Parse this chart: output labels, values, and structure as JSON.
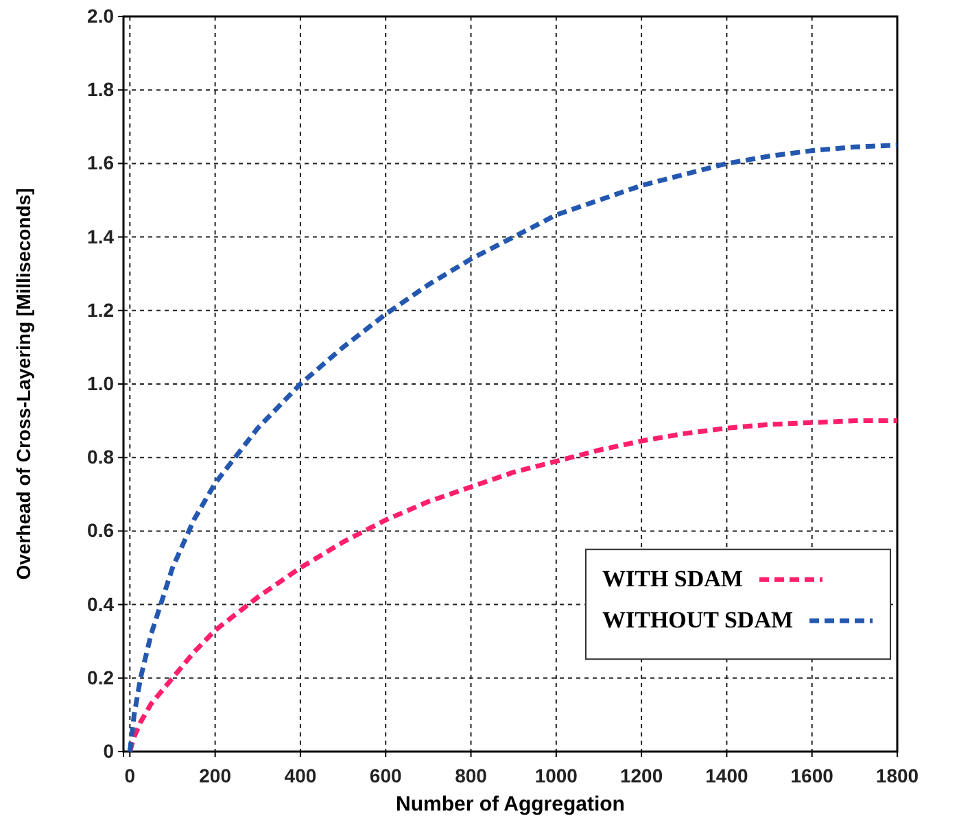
{
  "chart_data": {
    "type": "line",
    "xlabel": "Number of Aggregation",
    "ylabel": "Overhead of Cross-Layering [Milliseconds]",
    "x": [
      0,
      10,
      25,
      50,
      100,
      150,
      200,
      300,
      400,
      500,
      600,
      700,
      800,
      900,
      1000,
      1100,
      1200,
      1300,
      1400,
      1500,
      1600,
      1700,
      1800
    ],
    "series": [
      {
        "name": "WITH SDAM",
        "color": "#ff1f6b",
        "values": [
          0,
          0.04,
          0.08,
          0.13,
          0.2,
          0.27,
          0.33,
          0.42,
          0.5,
          0.57,
          0.63,
          0.68,
          0.72,
          0.76,
          0.79,
          0.82,
          0.845,
          0.865,
          0.88,
          0.89,
          0.895,
          0.9,
          0.9
        ]
      },
      {
        "name": "WITHOUT SDAM",
        "color": "#2458b0",
        "values": [
          0,
          0.1,
          0.2,
          0.32,
          0.5,
          0.63,
          0.73,
          0.88,
          1.0,
          1.1,
          1.19,
          1.27,
          1.34,
          1.4,
          1.46,
          1.5,
          1.54,
          1.57,
          1.6,
          1.62,
          1.635,
          1.645,
          1.65
        ]
      }
    ],
    "xlim": [
      -15,
      1800
    ],
    "xticks": [
      0,
      200,
      400,
      600,
      800,
      1000,
      1200,
      1400,
      1600,
      1800
    ],
    "ylim": [
      0,
      2
    ],
    "yticks": [
      0,
      {
        "value": 0.2,
        "label": "0.2"
      },
      {
        "value": 0.4,
        "label": "0.4"
      },
      {
        "value": 0.6,
        "label": "0.6"
      },
      {
        "value": 0.8,
        "label": "0.8"
      },
      {
        "value": 1,
        "label": "1.0"
      },
      {
        "value": 1.2,
        "label": "1.2"
      },
      {
        "value": 1.4,
        "label": "1.4"
      },
      {
        "value": 1.6,
        "label": "1.6"
      },
      {
        "value": 1.8,
        "label": "1.8"
      },
      {
        "value": 2,
        "label": "2.0"
      }
    ],
    "grid": true,
    "legend": "bottom right",
    "line_style": "dashed",
    "marker": "none"
  }
}
